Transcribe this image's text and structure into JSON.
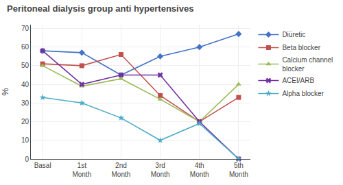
{
  "chart_data": {
    "type": "line",
    "title": "Peritoneal dialysis group anti hypertensives",
    "categories": [
      "Basal",
      "1st\nMonth",
      "2nd\nMonth",
      "3rd\nMonth",
      "4th\nMonth",
      "5th\nMonth"
    ],
    "ylabel": "%",
    "ylim": [
      0,
      72
    ],
    "yticks": [
      0,
      10,
      20,
      30,
      40,
      50,
      60,
      70
    ],
    "grid": true,
    "legend": "right",
    "series": [
      {
        "name": "Diüretic",
        "color": "#4472C4",
        "marker": "diamond",
        "values": [
          58,
          57,
          45,
          55,
          60,
          67
        ]
      },
      {
        "name": "Beta blocker",
        "color": "#C0504D",
        "marker": "square",
        "values": [
          51,
          50,
          56,
          34,
          20,
          33
        ]
      },
      {
        "name": "Calcium channel\nblocker",
        "color": "#9BBB59",
        "marker": "triangle-up",
        "values": [
          50,
          39,
          43,
          32,
          20,
          40
        ]
      },
      {
        "name": "ACEI/ARB",
        "color": "#7030A0",
        "marker": "x",
        "values": [
          58,
          40,
          45,
          45,
          20,
          0
        ]
      },
      {
        "name": "Alpha blocker",
        "color": "#4BACC6",
        "marker": "star",
        "values": [
          33,
          30,
          22,
          10,
          19,
          0
        ]
      }
    ]
  }
}
